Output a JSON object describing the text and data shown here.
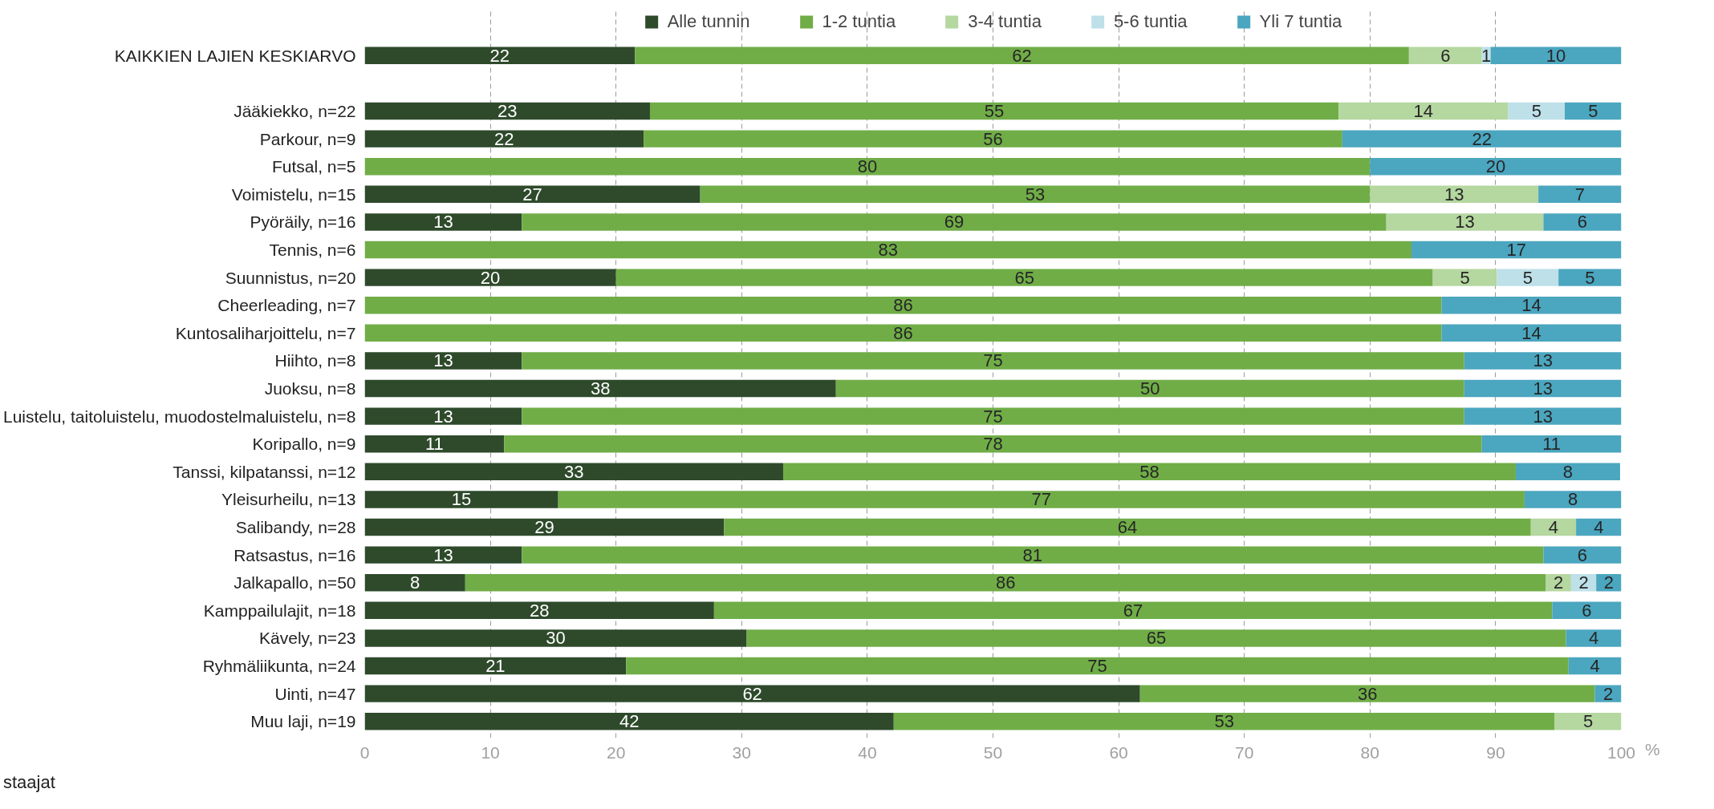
{
  "chart_data": {
    "type": "bar",
    "orientation": "horizontal",
    "stacked": true,
    "categories": [
      "KAIKKIEN LAJIEN KESKIARVO",
      null,
      "Jääkiekko, n=22",
      "Parkour, n=9",
      "Futsal, n=5",
      "Voimistelu, n=15",
      "Pyöräily, n=16",
      "Tennis, n=6",
      "Suunnistus, n=20",
      "Cheerleading, n=7",
      "Kuntosaliharjoittelu, n=7",
      "Hiihto, n=8",
      "Juoksu, n=8",
      "Luistelu, taitoluistelu, muodostelmaluistelu, n=8",
      "Koripallo, n=9",
      "Tanssi, kilpatanssi, n=12",
      "Yleisurheilu, n=13",
      "Salibandy, n=28",
      "Ratsastus, n=16",
      "Jalkapallo, n=50",
      "Kamppailulajit, n=18",
      "Kävely, n=23",
      "Ryhmäliikunta, n=24",
      "Uinti, n=47",
      "Muu laji, n=19"
    ],
    "series": [
      {
        "name": "Alle tunnin",
        "color": "#2e4a2b",
        "values": [
          21.5,
          null,
          22.7,
          22.2,
          null,
          26.7,
          12.5,
          null,
          20.0,
          null,
          null,
          12.5,
          37.5,
          12.5,
          11.1,
          33.3,
          15.4,
          28.6,
          12.5,
          8,
          27.8,
          30.4,
          20.8,
          61.7,
          42.1
        ],
        "value_labels": [
          "22",
          null,
          "23",
          "22",
          null,
          "27",
          "13",
          null,
          "20",
          null,
          null,
          "13",
          "38",
          "13",
          "11",
          "33",
          "15",
          "29",
          "13",
          "8",
          "28",
          "30",
          "21",
          "62",
          "42"
        ]
      },
      {
        "name": "1-2 tuntia",
        "color": "#70ad47",
        "values": [
          61.6,
          null,
          54.8,
          55.6,
          80,
          53.3,
          68.8,
          83.3,
          65.0,
          85.7,
          85.7,
          75,
          50,
          75,
          77.8,
          58.3,
          76.9,
          64.2,
          81.3,
          86,
          66.7,
          65.2,
          75.0,
          36.2,
          52.6
        ],
        "value_labels": [
          "62",
          null,
          "55",
          "56",
          "80",
          "53",
          "69",
          "83",
          "65",
          "86",
          "86",
          "75",
          "50",
          "75",
          "78",
          "58",
          "77",
          "64",
          "81",
          "86",
          "67",
          "65",
          "75",
          "36",
          "53"
        ]
      },
      {
        "name": "3-4 tuntia",
        "color": "#b5d7a0",
        "values": [
          5.8,
          null,
          13.5,
          null,
          null,
          13.4,
          12.5,
          null,
          5.1,
          null,
          null,
          null,
          null,
          null,
          null,
          null,
          null,
          3.6,
          null,
          2,
          null,
          null,
          null,
          null,
          5.3
        ],
        "value_labels": [
          "6",
          null,
          "14",
          null,
          null,
          "13",
          "13",
          null,
          "5",
          null,
          null,
          null,
          null,
          null,
          null,
          null,
          null,
          "4",
          null,
          "2",
          null,
          null,
          null,
          null,
          "5"
        ]
      },
      {
        "name": "5-6 tuntia",
        "color": "#bde0e9",
        "values": [
          0.7,
          null,
          4.5,
          null,
          null,
          null,
          null,
          null,
          4.9,
          null,
          null,
          null,
          null,
          null,
          null,
          null,
          null,
          null,
          null,
          2,
          null,
          null,
          null,
          null,
          null
        ],
        "value_labels": [
          "1",
          null,
          "5",
          null,
          null,
          null,
          null,
          null,
          "5",
          null,
          null,
          null,
          null,
          null,
          null,
          null,
          null,
          null,
          null,
          "2",
          null,
          null,
          null,
          null,
          null
        ]
      },
      {
        "name": "Yli 7 tuntia",
        "color": "#4ba6bf",
        "values": [
          10.4,
          null,
          4.5,
          22.2,
          20,
          6.6,
          6.2,
          16.7,
          5.0,
          14.3,
          14.3,
          12.5,
          12.5,
          12.5,
          11.1,
          8.3,
          7.7,
          3.6,
          6.2,
          2,
          5.5,
          4.4,
          4.2,
          2.1,
          null
        ],
        "value_labels": [
          "10",
          null,
          "5",
          "22",
          "20",
          "7",
          "6",
          "17",
          "5",
          "14",
          "14",
          "13",
          "13",
          "13",
          "11",
          "8",
          "8",
          "4",
          "6",
          "2",
          "6",
          "4",
          "4",
          "2",
          null
        ]
      }
    ],
    "xlim": [
      0,
      100
    ],
    "xticks": [
      0,
      10,
      20,
      30,
      40,
      50,
      60,
      70,
      80,
      90,
      100
    ],
    "xlabel": "%",
    "grid": "x",
    "legend": "top",
    "annotations": [
      "staajat"
    ]
  }
}
